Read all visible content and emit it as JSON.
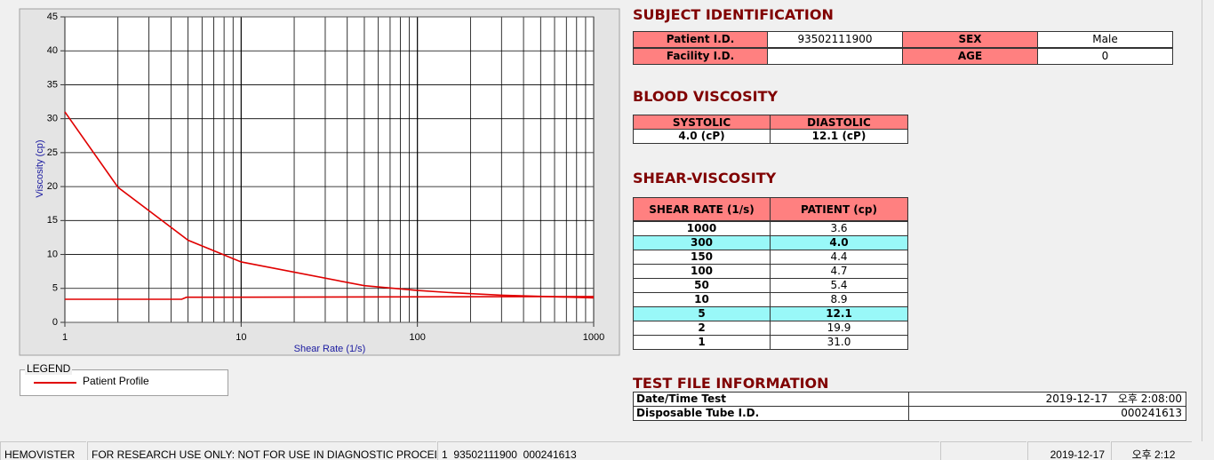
{
  "chart_data": {
    "type": "line",
    "xlabel": "Shear Rate (1/s)",
    "ylabel": "Viscosity (cp)",
    "xscale": "log",
    "xlim": [
      1,
      1000
    ],
    "xticks": [
      1,
      10,
      100,
      1000
    ],
    "ylim": [
      0,
      45
    ],
    "yticks": [
      0,
      5,
      10,
      15,
      20,
      25,
      30,
      35,
      40,
      45
    ],
    "grid": true,
    "series": [
      {
        "name": "Patient Profile",
        "color": "#e00000",
        "x": [
          1,
          2,
          5,
          10,
          50,
          100,
          150,
          300,
          1000
        ],
        "values": [
          31.0,
          19.9,
          12.1,
          8.9,
          5.4,
          4.7,
          4.4,
          4.0,
          3.6
        ]
      },
      {
        "color": "#e00000",
        "x": [
          1,
          4.6,
          4.9,
          1000
        ],
        "values": [
          3.4,
          3.4,
          3.7,
          3.8
        ]
      }
    ]
  },
  "legend": {
    "title": "LEGEND"
  },
  "subject": {
    "title": "SUBJECT IDENTIFICATION",
    "fields": [
      {
        "label": "Patient I.D.",
        "value": "93502111900"
      },
      {
        "label": "SEX",
        "value": "Male"
      },
      {
        "label": "Facility I.D."
      },
      {
        "label": "AGE",
        "value": "0"
      }
    ]
  },
  "blood": {
    "title": "BLOOD VISCOSITY",
    "headers": [
      "SYSTOLIC",
      "DIASTOLIC"
    ],
    "values": [
      "4.0 (cP)",
      "12.1 (cP)"
    ]
  },
  "shear": {
    "title": "SHEAR-VISCOSITY",
    "headers": [
      "SHEAR RATE (1/s)",
      "PATIENT (cp)"
    ],
    "rows": [
      [
        "1000",
        "3.6"
      ],
      [
        "300",
        "4.0"
      ],
      [
        "150",
        "4.4"
      ],
      [
        "100",
        "4.7"
      ],
      [
        "50",
        "5.4"
      ],
      [
        "10",
        "8.9"
      ],
      [
        "5",
        "12.1"
      ],
      [
        "2",
        "19.9"
      ],
      [
        "1",
        "31.0"
      ]
    ],
    "highlight_rows": [
      1,
      6
    ]
  },
  "test_file": {
    "title": "TEST FILE INFORMATION",
    "rows": [
      {
        "label": "Date/Time Test",
        "value": "2019-12-17   오후 2:08:00"
      },
      {
        "label": "Disposable Tube I.D.",
        "value": "000241613"
      }
    ]
  },
  "status_bar": [
    "HEMOVISTER",
    "FOR RESEARCH USE ONLY: NOT FOR USE IN DIAGNOSTIC PROCEDURES",
    "1  93502111900  000241613",
    "2019-12-17",
    "오후 2:12"
  ]
}
